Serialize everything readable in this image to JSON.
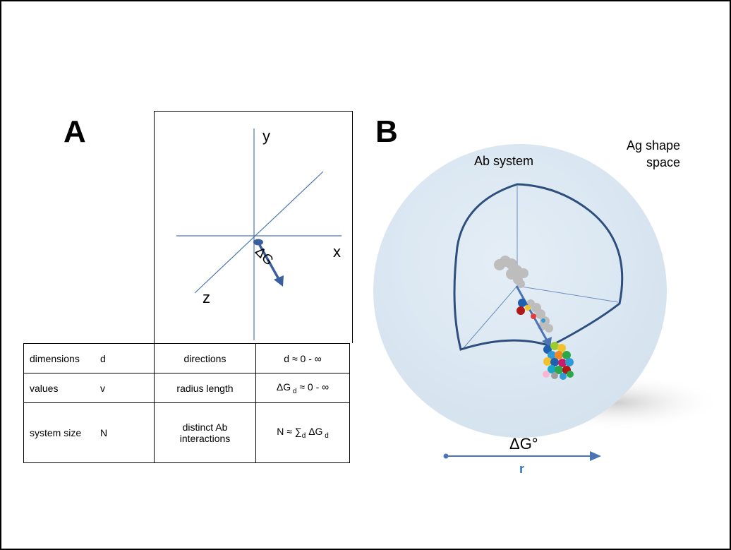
{
  "panel_a": {
    "letter": "A",
    "axes": {
      "y": "y",
      "x": "x",
      "z": "z"
    },
    "vector_label": "ΔG",
    "table": [
      {
        "property": "dimensions",
        "symbol": "d",
        "meaning": "directions",
        "formula": "d ≈ 0 - ∞"
      },
      {
        "property": "values",
        "symbol": "v",
        "meaning": "radius length",
        "formula": "ΔG d ≈ 0 - ∞"
      },
      {
        "property": "system size",
        "symbol": "N",
        "meaning": "distinct Ab interactions",
        "formula": "N ≈ ∑d ΔG d"
      }
    ]
  },
  "panel_b": {
    "letter": "B",
    "ab_system": "Ab system",
    "ag_shape_space_1": "Ag shape",
    "ag_shape_space_2": "space",
    "energy_label": "ΔG°",
    "radius_label": "r"
  },
  "colors": {
    "axis_blue": "#4a74b3",
    "sphere_fill": "#dce8f2",
    "outline_dark": "#2e4f7d",
    "r_label": "#2e75b6"
  }
}
